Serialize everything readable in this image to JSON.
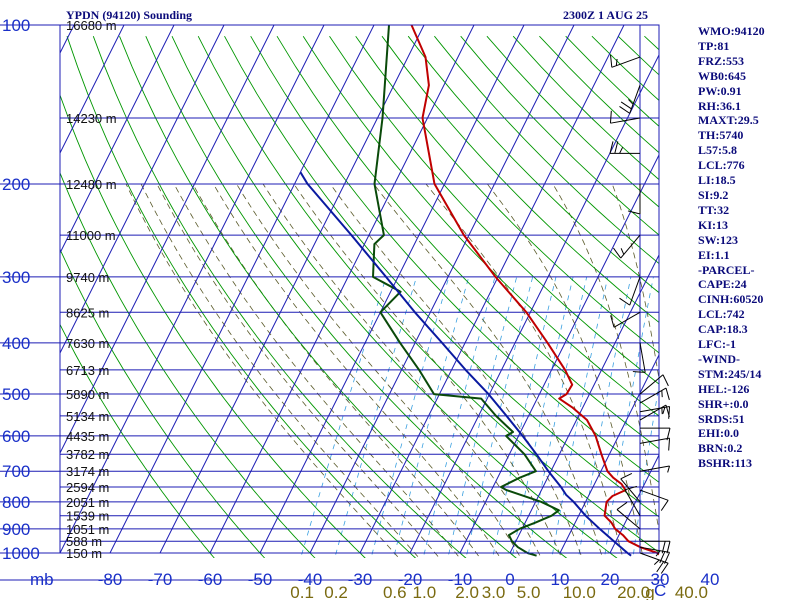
{
  "header": {
    "title": "YPDN (94120) Sounding",
    "time": "2300Z  1 AUG 25"
  },
  "indices": [
    "WMO:94120",
    "TP:81",
    "FRZ:553",
    "WB0:645",
    "PW:0.91",
    "RH:36.1",
    "MAXT:29.5",
    "TH:5740",
    "L57:5.8",
    "LCL:776",
    "LI:18.5",
    "SI:9.2",
    "TT:32",
    "KI:13",
    "SW:123",
    "EI:1.1",
    "-PARCEL-",
    "CAPE:24",
    "CINH:60520",
    "LCL:742",
    "CAP:18.3",
    "LFC:-1",
    "-WIND-",
    "STM:245/14",
    "HEL:-126",
    "SHR+:0.0",
    "SRDS:51",
    "EHI:0.0",
    "BRN:0.2",
    "BSHR:113"
  ],
  "colors": {
    "grid": "#1c1cb4",
    "dry_adiabat": "#009600",
    "moist_adiabat": "#5a5a2a",
    "mixing_ratio": "#3aa0e0",
    "temperature": "#c00000",
    "dewpoint": "#0a4a0a",
    "parcel": "#0a1aa0"
  },
  "chart_data": {
    "type": "line",
    "chart_kind": "skew-T log-P sounding",
    "y_axis_unit_label": "mb",
    "x_axis_unit_label": "C",
    "pressure_levels": [
      100,
      200,
      300,
      400,
      500,
      600,
      700,
      800,
      900,
      1000
    ],
    "temperature_ticks": [
      -80,
      -70,
      -60,
      -50,
      -40,
      -30,
      -20,
      -10,
      0,
      10,
      20,
      30,
      40
    ],
    "mixing_ratio_labels": [
      "0.1",
      "0.2",
      "0.6",
      "1.0",
      "2.0",
      "3.0",
      "5.0",
      "10.0",
      "20.0",
      "40.0",
      "g"
    ],
    "height_labels": [
      {
        "p": 100,
        "label": "16680 m"
      },
      {
        "p": 150,
        "label": "14230 m"
      },
      {
        "p": 200,
        "label": "12480 m"
      },
      {
        "p": 250,
        "label": "11000 m"
      },
      {
        "p": 300,
        "label": "9740 m"
      },
      {
        "p": 350,
        "label": "8625 m"
      },
      {
        "p": 400,
        "label": "7630 m"
      },
      {
        "p": 450,
        "label": "6713 m"
      },
      {
        "p": 500,
        "label": "5890 m"
      },
      {
        "p": 550,
        "label": "5134 m"
      },
      {
        "p": 600,
        "label": "4435 m"
      },
      {
        "p": 650,
        "label": "3782 m"
      },
      {
        "p": 700,
        "label": "3174 m"
      },
      {
        "p": 750,
        "label": "2594 m"
      },
      {
        "p": 800,
        "label": "2051 m"
      },
      {
        "p": 850,
        "label": "1539 m"
      },
      {
        "p": 900,
        "label": "1051 m"
      },
      {
        "p": 950,
        "label": "588 m"
      },
      {
        "p": 1000,
        "label": "150 m"
      }
    ],
    "series": [
      {
        "key": "temperature",
        "points": [
          [
            1012,
            30.5
          ],
          [
            1000,
            29.5
          ],
          [
            975,
            25.5
          ],
          [
            950,
            22.5
          ],
          [
            925,
            20.8
          ],
          [
            900,
            18.6
          ],
          [
            875,
            17.2
          ],
          [
            850,
            15.2
          ],
          [
            800,
            14.2
          ],
          [
            780,
            14.8
          ],
          [
            760,
            16.8
          ],
          [
            740,
            15.4
          ],
          [
            720,
            13.1
          ],
          [
            700,
            11.3
          ],
          [
            650,
            8.4
          ],
          [
            600,
            5.4
          ],
          [
            560,
            2.1
          ],
          [
            530,
            -2.1
          ],
          [
            510,
            -5.6
          ],
          [
            500,
            -4.6
          ],
          [
            480,
            -4.4
          ],
          [
            450,
            -7.3
          ],
          [
            400,
            -13.5
          ],
          [
            350,
            -20.8
          ],
          [
            300,
            -30.5
          ],
          [
            250,
            -41
          ],
          [
            200,
            -52
          ],
          [
            150,
            -61
          ],
          [
            130,
            -63
          ],
          [
            115,
            -66.5
          ],
          [
            100,
            -72.5
          ]
        ]
      },
      {
        "key": "dewpoint",
        "points": [
          [
            1012,
            5.6
          ],
          [
            1000,
            3.5
          ],
          [
            975,
            1.0
          ],
          [
            950,
            -0.8
          ],
          [
            925,
            -2.0
          ],
          [
            900,
            -0.5
          ],
          [
            875,
            2.1
          ],
          [
            850,
            4.6
          ],
          [
            830,
            5.5
          ],
          [
            800,
            1.1
          ],
          [
            760,
            -7.0
          ],
          [
            750,
            -8.4
          ],
          [
            720,
            -5.6
          ],
          [
            700,
            -3.0
          ],
          [
            650,
            -7.0
          ],
          [
            600,
            -12.5
          ],
          [
            590,
            -11.5
          ],
          [
            550,
            -16.5
          ],
          [
            510,
            -21.2
          ],
          [
            500,
            -31.1
          ],
          [
            450,
            -36.5
          ],
          [
            400,
            -43
          ],
          [
            350,
            -50
          ],
          [
            320,
            -48
          ],
          [
            300,
            -55
          ],
          [
            260,
            -58
          ],
          [
            250,
            -57
          ],
          [
            200,
            -64
          ],
          [
            150,
            -69
          ],
          [
            100,
            -77
          ]
        ]
      },
      {
        "key": "parcel",
        "points": [
          [
            1012,
            24.5
          ],
          [
            1000,
            23.5
          ],
          [
            950,
            19.6
          ],
          [
            900,
            15.5
          ],
          [
            850,
            11.4
          ],
          [
            800,
            7.6
          ],
          [
            776,
            5.4
          ],
          [
            750,
            3.6
          ],
          [
            700,
            -0.5
          ],
          [
            650,
            -4.6
          ],
          [
            600,
            -9.2
          ],
          [
            550,
            -14.4
          ],
          [
            500,
            -20.2
          ],
          [
            450,
            -27.2
          ],
          [
            400,
            -34.6
          ],
          [
            350,
            -43.1
          ],
          [
            300,
            -52.4
          ],
          [
            250,
            -63.5
          ],
          [
            200,
            -77.4
          ],
          [
            190,
            -80
          ]
        ]
      }
    ],
    "wind_barbs": [
      {
        "p": 115,
        "dir": 250,
        "spd": 15
      },
      {
        "p": 130,
        "dir": 200,
        "spd": 25
      },
      {
        "p": 150,
        "dir": 260,
        "spd": 10
      },
      {
        "p": 175,
        "dir": 270,
        "spd": 25
      },
      {
        "p": 200,
        "dir": 180,
        "spd": 10
      },
      {
        "p": 250,
        "dir": 220,
        "spd": 15
      },
      {
        "p": 300,
        "dir": 200,
        "spd": 10
      },
      {
        "p": 350,
        "dir": 240,
        "spd": 10
      },
      {
        "p": 400,
        "dir": 170,
        "spd": 10
      },
      {
        "p": 500,
        "dir": 50,
        "spd": 10
      },
      {
        "p": 520,
        "dir": 60,
        "spd": 15
      },
      {
        "p": 540,
        "dir": 80,
        "spd": 15
      },
      {
        "p": 560,
        "dir": 60,
        "spd": 15
      },
      {
        "p": 580,
        "dir": 90,
        "spd": 10
      },
      {
        "p": 620,
        "dir": 80,
        "spd": 10
      },
      {
        "p": 700,
        "dir": 80,
        "spd": 5
      },
      {
        "p": 760,
        "dir": 110,
        "spd": 10
      },
      {
        "p": 800,
        "dir": 320,
        "spd": 10
      },
      {
        "p": 850,
        "dir": 330,
        "spd": 10
      },
      {
        "p": 900,
        "dir": 310,
        "spd": 10
      },
      {
        "p": 950,
        "dir": 90,
        "spd": 20
      },
      {
        "p": 975,
        "dir": 100,
        "spd": 25
      },
      {
        "p": 1000,
        "dir": 110,
        "spd": 25
      }
    ]
  }
}
